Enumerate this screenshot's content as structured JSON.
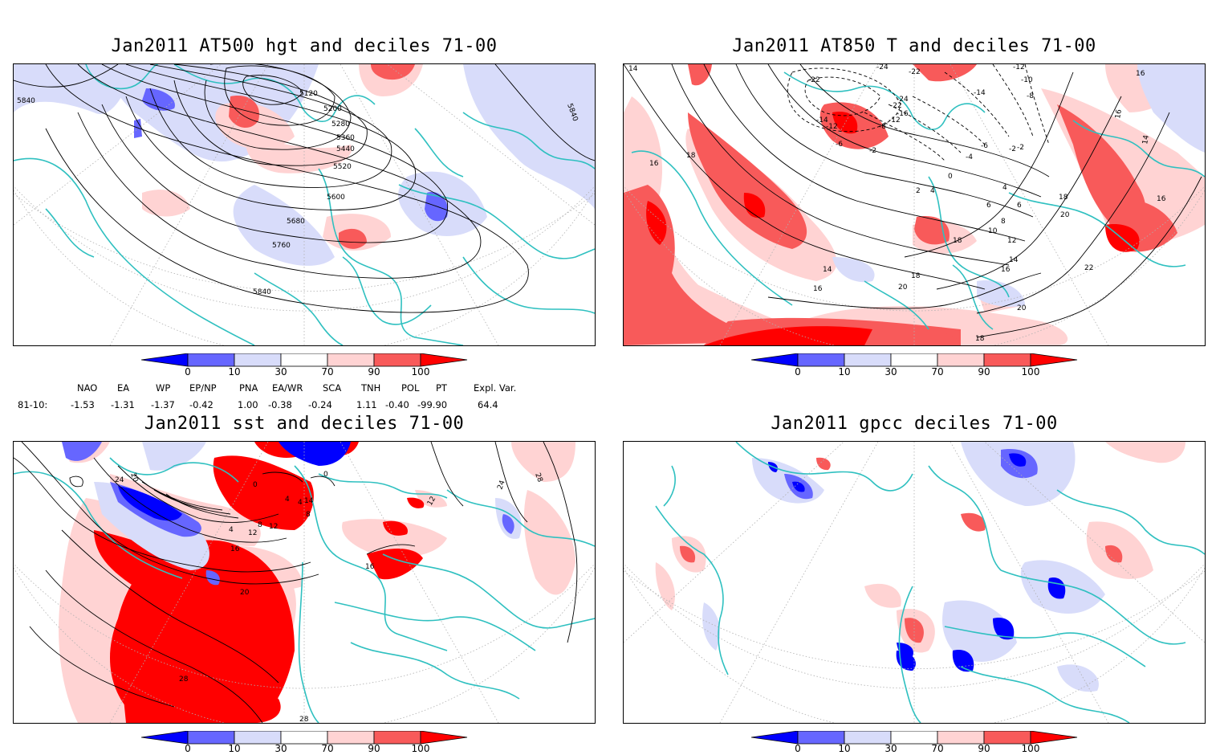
{
  "panels": {
    "hgt": {
      "title": "Jan2011 AT500 hgt and deciles 71-00",
      "contour_labels": [
        "5840",
        "5120",
        "5200",
        "5280",
        "5360",
        "5440",
        "5520",
        "5600",
        "5680",
        "5760",
        "5840",
        "5840"
      ]
    },
    "t850": {
      "title": "Jan2011 AT850 T and deciles 71-00",
      "contour_labels": [
        "14",
        "-22",
        "-24",
        "-22",
        "-12",
        "-10",
        "-8",
        "16",
        "-14",
        "-24",
        "-16",
        "-12",
        "-22",
        "-14",
        "-12",
        "-8",
        "-6",
        "-2",
        "16",
        "14",
        "-6",
        "-4",
        "-2",
        "-2",
        "0",
        "4",
        "6",
        "18",
        "16",
        "2",
        "4",
        "6",
        "8",
        "18",
        "16",
        "10",
        "20",
        "12",
        "14",
        "16",
        "14",
        "16",
        "18",
        "22",
        "20",
        "18",
        "20",
        "18"
      ]
    },
    "sst": {
      "title": "Jan2011 sst and deciles 71-00",
      "contour_labels": [
        "24",
        "20",
        "0",
        "0",
        "4",
        "4",
        "14",
        "8",
        "12",
        "4",
        "12",
        "8",
        "16",
        "16",
        "20",
        "24",
        "28",
        "28",
        "28",
        "12"
      ]
    },
    "gpcc": {
      "title": "Jan2011 gpcc deciles 71-00"
    }
  },
  "colorbar": {
    "ticks": [
      "0",
      "10",
      "30",
      "70",
      "90",
      "100"
    ],
    "colors": {
      "deep_blue": "#0000ff",
      "mid_blue": "#6666ff",
      "light_blue": "#d8dcfa",
      "white": "#ffffff",
      "light_red": "#ffd3d3",
      "mid_red": "#f85a5a",
      "deep_red": "#ff0000"
    }
  },
  "colors": {
    "coast": "#2fc0c0",
    "contour": "#000000",
    "grid": "#b0b0b0"
  },
  "indices": {
    "headers": [
      "NAO",
      "EA",
      "WP",
      "EP/NP",
      "PNA",
      "EA/WR",
      "SCA",
      "TNH",
      "POL",
      "PT",
      "Expl. Var."
    ],
    "row_label": "81-10:",
    "values": [
      "-1.53",
      "-1.31",
      "-1.37",
      "-0.42",
      "1.00",
      "-0.38",
      "-0.24",
      "1.11",
      "-0.40",
      "-99.90",
      "64.4"
    ]
  }
}
